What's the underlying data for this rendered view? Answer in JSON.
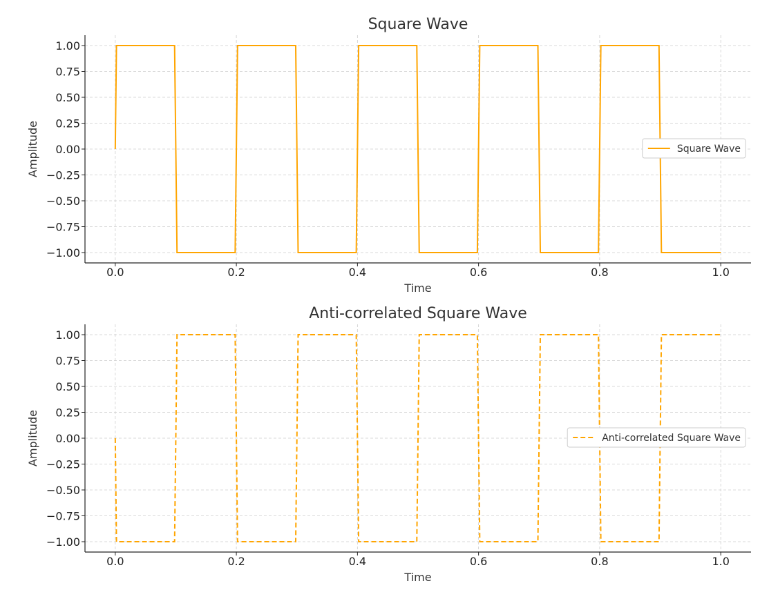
{
  "colors": {
    "line": "#FFA500",
    "grid": "#cccccc",
    "axis": "#222222",
    "legend_border": "#cccccc"
  },
  "chart_data": [
    {
      "type": "line",
      "title": "Square Wave",
      "xlabel": "Time",
      "ylabel": "Amplitude",
      "xlim": [
        -0.05,
        1.05
      ],
      "ylim": [
        -1.1,
        1.1
      ],
      "xticks": [
        0.0,
        0.2,
        0.4,
        0.6,
        0.8,
        1.0
      ],
      "xtick_labels": [
        "0.0",
        "0.2",
        "0.4",
        "0.6",
        "0.8",
        "1.0"
      ],
      "yticks": [
        1.0,
        0.75,
        0.5,
        0.25,
        0.0,
        -0.25,
        -0.5,
        -0.75,
        -1.0
      ],
      "ytick_labels": [
        "1.00",
        "0.75",
        "0.50",
        "0.25",
        "0.00",
        "−0.25",
        "−0.50",
        "−0.75",
        "−1.00"
      ],
      "grid": true,
      "legend_position": "center-right",
      "series": [
        {
          "name": "Square Wave",
          "line_style": "solid",
          "x": [
            0.0,
            0.002,
            0.098,
            0.102,
            0.198,
            0.202,
            0.298,
            0.302,
            0.398,
            0.402,
            0.498,
            0.502,
            0.598,
            0.602,
            0.698,
            0.702,
            0.798,
            0.802,
            0.898,
            0.902,
            1.0
          ],
          "y": [
            0,
            1,
            1,
            -1,
            -1,
            1,
            1,
            -1,
            -1,
            1,
            1,
            -1,
            -1,
            1,
            1,
            -1,
            -1,
            1,
            1,
            -1,
            -1
          ]
        }
      ]
    },
    {
      "type": "line",
      "title": "Anti-correlated Square Wave",
      "xlabel": "Time",
      "ylabel": "Amplitude",
      "xlim": [
        -0.05,
        1.05
      ],
      "ylim": [
        -1.1,
        1.1
      ],
      "xticks": [
        0.0,
        0.2,
        0.4,
        0.6,
        0.8,
        1.0
      ],
      "xtick_labels": [
        "0.0",
        "0.2",
        "0.4",
        "0.6",
        "0.8",
        "1.0"
      ],
      "yticks": [
        1.0,
        0.75,
        0.5,
        0.25,
        0.0,
        -0.25,
        -0.5,
        -0.75,
        -1.0
      ],
      "ytick_labels": [
        "1.00",
        "0.75",
        "0.50",
        "0.25",
        "0.00",
        "−0.25",
        "−0.50",
        "−0.75",
        "−1.00"
      ],
      "grid": true,
      "legend_position": "center-right",
      "series": [
        {
          "name": "Anti-correlated Square Wave",
          "line_style": "dashed",
          "x": [
            0.0,
            0.002,
            0.098,
            0.102,
            0.198,
            0.202,
            0.298,
            0.302,
            0.398,
            0.402,
            0.498,
            0.502,
            0.598,
            0.602,
            0.698,
            0.702,
            0.798,
            0.802,
            0.898,
            0.902,
            1.0
          ],
          "y": [
            0,
            -1,
            -1,
            1,
            1,
            -1,
            -1,
            1,
            1,
            -1,
            -1,
            1,
            1,
            -1,
            -1,
            1,
            1,
            -1,
            -1,
            1,
            1
          ]
        }
      ]
    }
  ]
}
